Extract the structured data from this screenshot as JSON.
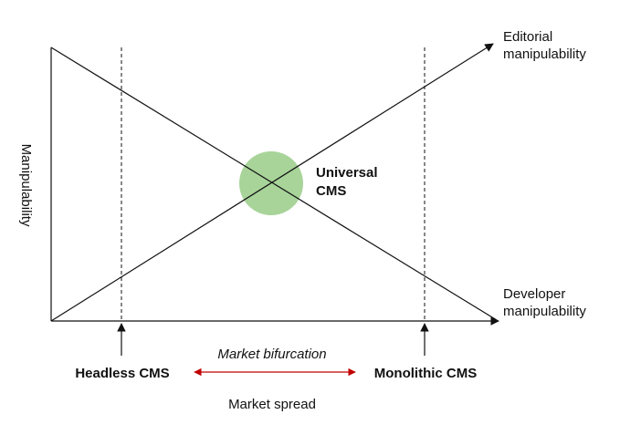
{
  "axes": {
    "x_label": "Market spread",
    "y_label": "Manipulability"
  },
  "lines": {
    "editorial": [
      "Editorial",
      "manipulability"
    ],
    "developer": [
      "Developer",
      "manipulability"
    ]
  },
  "center": {
    "label": [
      "Universal",
      "CMS"
    ],
    "color": "#a8d49a"
  },
  "markers": {
    "left": "Headless CMS",
    "right": "Monolithic CMS"
  },
  "bifurcation": {
    "label": "Market bifurcation",
    "color": "#c00000"
  }
}
